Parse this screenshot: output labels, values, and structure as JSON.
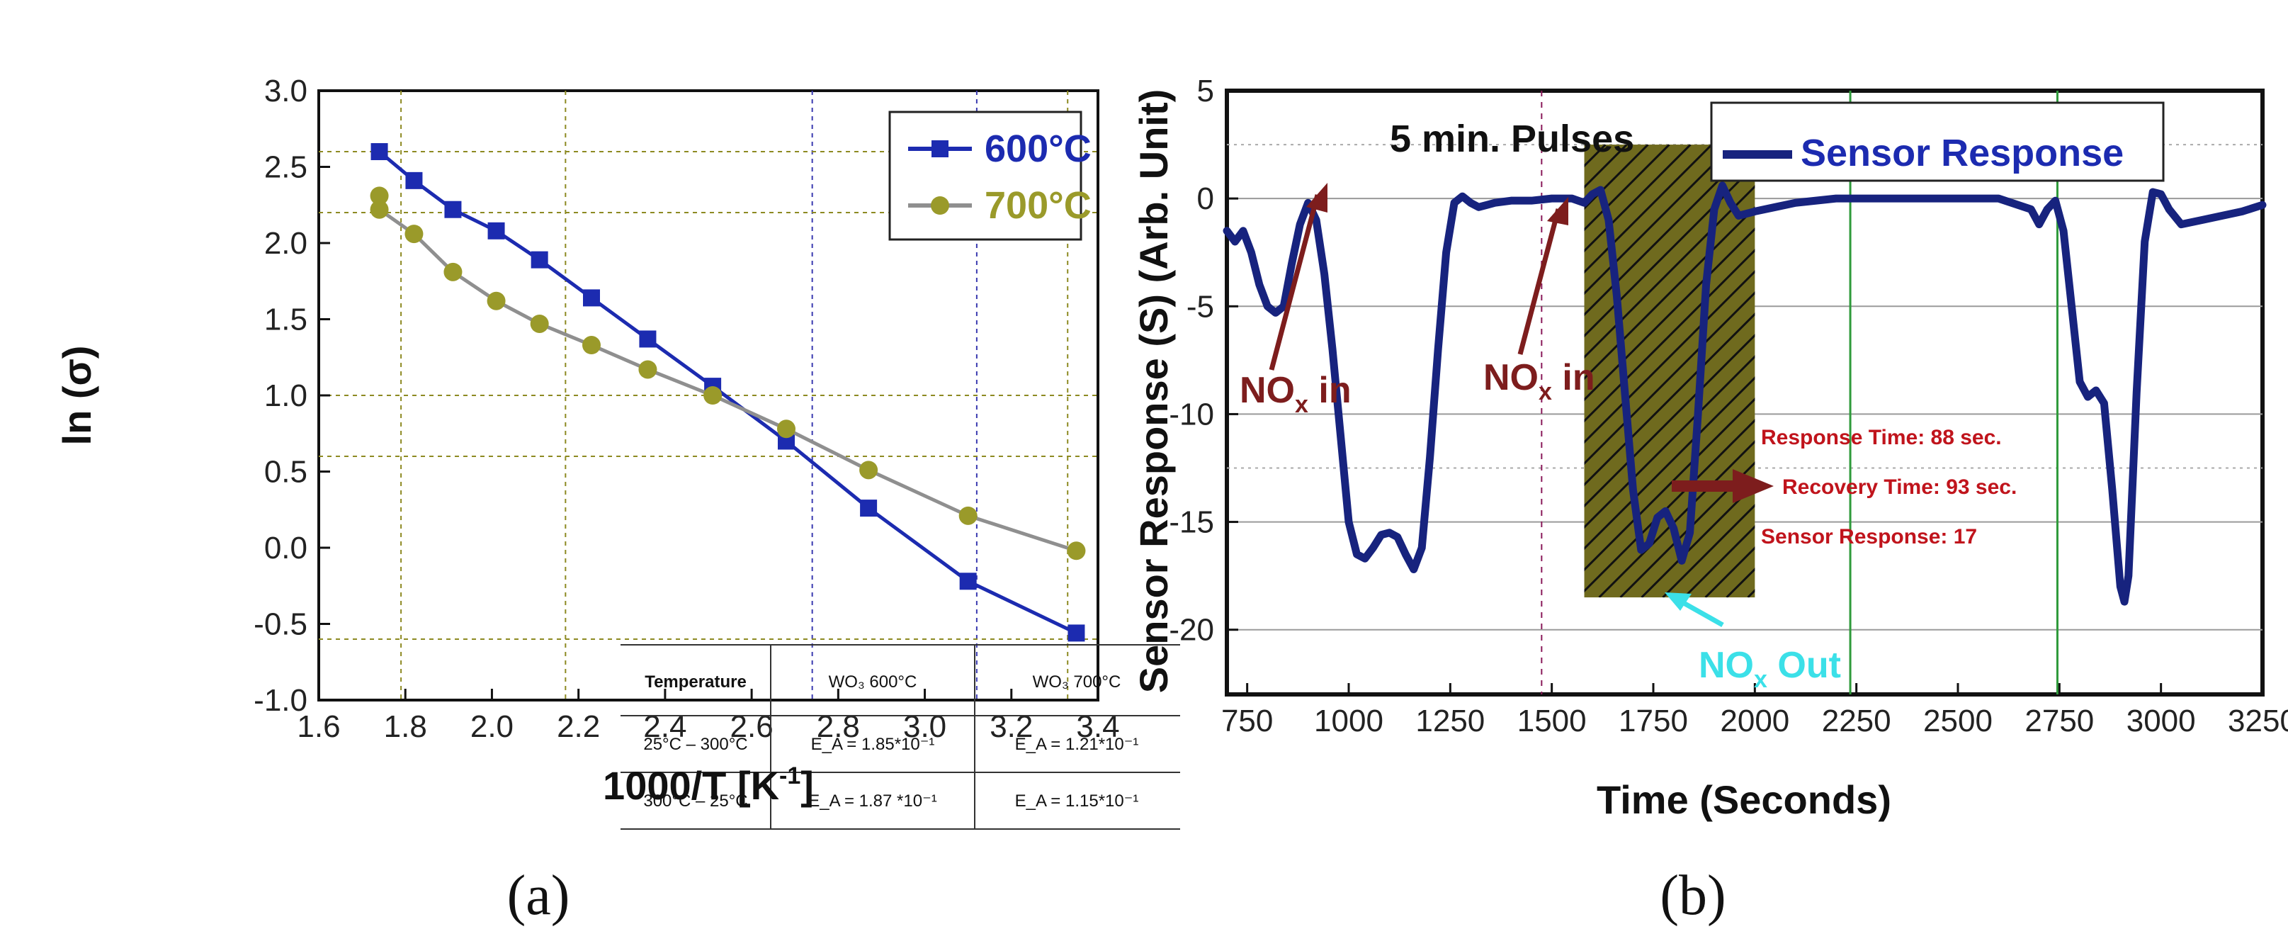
{
  "chart_data": [
    {
      "type": "line",
      "panel": "(a)",
      "xlabel": "1000/T [K",
      "xlabel_sup": "-1",
      "xlabel_end": "]",
      "ylabel": "ln (σ)",
      "xlim": [
        1.6,
        3.4
      ],
      "ylim": [
        -1.0,
        3.0
      ],
      "xticks": [
        "1.6",
        "1.8",
        "2.0",
        "2.2",
        "2.4",
        "2.6",
        "2.8",
        "3.0",
        "3.2",
        "3.4"
      ],
      "yticks": [
        "-1.0",
        "-0.5",
        "0.0",
        "0.5",
        "1.0",
        "1.5",
        "2.0",
        "2.5",
        "3.0"
      ],
      "series": [
        {
          "name": "600°C",
          "color": "#1c2bb0",
          "marker": "square",
          "x": [
            1.74,
            1.82,
            1.91,
            2.01,
            2.11,
            2.23,
            2.36,
            2.51,
            2.68,
            2.87,
            3.1,
            3.35
          ],
          "y": [
            2.6,
            2.41,
            2.22,
            2.08,
            1.89,
            1.64,
            1.37,
            1.06,
            0.7,
            0.26,
            -0.22,
            -0.56
          ]
        },
        {
          "name": "700°C",
          "color": "#8f8f8f",
          "marker_color": "#9a9a2a",
          "marker": "circle",
          "x": [
            1.74,
            1.74,
            1.82,
            1.91,
            2.01,
            2.11,
            2.23,
            2.36,
            2.51,
            2.68,
            2.87,
            3.1,
            3.35
          ],
          "y": [
            2.31,
            2.22,
            2.06,
            1.81,
            1.62,
            1.47,
            1.33,
            1.17,
            1.0,
            0.78,
            0.51,
            0.21,
            -0.02
          ]
        }
      ],
      "table": {
        "headers": [
          "Temperature",
          "WO₃ 600°C",
          "WO₃ 700°C"
        ],
        "rows": [
          [
            "25°C – 300°C",
            "E_A = 1.85*10⁻¹",
            "E_A = 1.21*10⁻¹"
          ],
          [
            "300°C – 25°C",
            "E_A = 1.87 *10⁻¹",
            "E_A = 1.15*10⁻¹"
          ]
        ]
      },
      "ref_lines_x": [
        1.79,
        2.17,
        2.74,
        3.12,
        3.33
      ],
      "ref_lines_y": [
        2.6,
        2.2,
        1.0,
        0.6,
        -0.6
      ]
    },
    {
      "type": "line",
      "panel": "(b)",
      "xlabel": "Time (Seconds)",
      "ylabel": "Sensor Response (S) (Arb. Unit)",
      "xlim": [
        700,
        3250
      ],
      "ylim": [
        -23,
        5
      ],
      "xticks": [
        "750",
        "1000",
        "1250",
        "1500",
        "1750",
        "2000",
        "2250",
        "2500",
        "2750",
        "3000",
        "3250"
      ],
      "yticks": [
        "5",
        "0",
        "-5",
        "-10",
        "-15",
        "-20"
      ],
      "title_text": "5 min. Pulses",
      "series": [
        {
          "name": "Sensor Response",
          "color": "#17237e",
          "x": [
            700,
            720,
            740,
            760,
            780,
            800,
            820,
            840,
            860,
            880,
            900,
            920,
            940,
            960,
            980,
            1000,
            1020,
            1040,
            1060,
            1080,
            1100,
            1120,
            1140,
            1160,
            1180,
            1200,
            1220,
            1240,
            1260,
            1280,
            1300,
            1320,
            1340,
            1360,
            1400,
            1450,
            1500,
            1550,
            1580,
            1600,
            1620,
            1640,
            1660,
            1680,
            1700,
            1720,
            1740,
            1760,
            1780,
            1800,
            1820,
            1840,
            1860,
            1880,
            1900,
            1920,
            1940,
            1960,
            1980,
            2000,
            2050,
            2100,
            2200,
            2300,
            2400,
            2500,
            2600,
            2680,
            2700,
            2720,
            2740,
            2760,
            2780,
            2800,
            2820,
            2840,
            2860,
            2880,
            2900,
            2910,
            2920,
            2940,
            2960,
            2980,
            3000,
            3020,
            3050,
            3100,
            3150,
            3200,
            3250
          ],
          "y": [
            -1.5,
            -2.0,
            -1.5,
            -2.5,
            -4.0,
            -5.0,
            -5.3,
            -5.0,
            -3.0,
            -1.2,
            -0.2,
            -1.0,
            -3.5,
            -7.0,
            -11.0,
            -15.0,
            -16.5,
            -16.7,
            -16.2,
            -15.6,
            -15.5,
            -15.7,
            -16.5,
            -17.2,
            -16.2,
            -12.0,
            -7.0,
            -2.5,
            -0.2,
            0.1,
            -0.2,
            -0.4,
            -0.3,
            -0.2,
            -0.1,
            -0.1,
            0.0,
            0.0,
            -0.2,
            0.2,
            0.4,
            -1.0,
            -4.5,
            -9.0,
            -13.5,
            -16.3,
            -16.0,
            -14.8,
            -14.5,
            -15.3,
            -16.8,
            -15.5,
            -10.0,
            -4.0,
            -0.5,
            0.6,
            -0.2,
            -0.8,
            -0.7,
            -0.6,
            -0.4,
            -0.2,
            0.0,
            0.0,
            0.0,
            0.0,
            0.0,
            -0.5,
            -1.2,
            -0.5,
            -0.1,
            -1.5,
            -5.0,
            -8.5,
            -9.2,
            -8.9,
            -9.5,
            -13.5,
            -18.0,
            -18.7,
            -17.5,
            -9.0,
            -2.0,
            0.3,
            0.2,
            -0.5,
            -1.2,
            -1.0,
            -0.8,
            -0.6,
            -0.3
          ]
        }
      ],
      "shaded_region": {
        "x": [
          1580,
          2000
        ],
        "y": [
          -18.5,
          2.5
        ],
        "color": "#6f6a1e"
      },
      "ref_lines_x": [
        1475,
        2235,
        2745
      ],
      "annotations": {
        "nox_in_1": "NO",
        "nox_in_1_sub": "x",
        "nox_in_1_end": " in",
        "nox_in_2": "NO",
        "nox_in_2_sub": "x",
        "nox_in_2_end": " in",
        "nox_out": "NO",
        "nox_out_sub": "x",
        "nox_out_end": " Out",
        "response_time": "Response Time: 88 sec.",
        "recovery_time": "Recovery Time: 93 sec.",
        "sensor_response": "Sensor Response: 17"
      }
    }
  ]
}
